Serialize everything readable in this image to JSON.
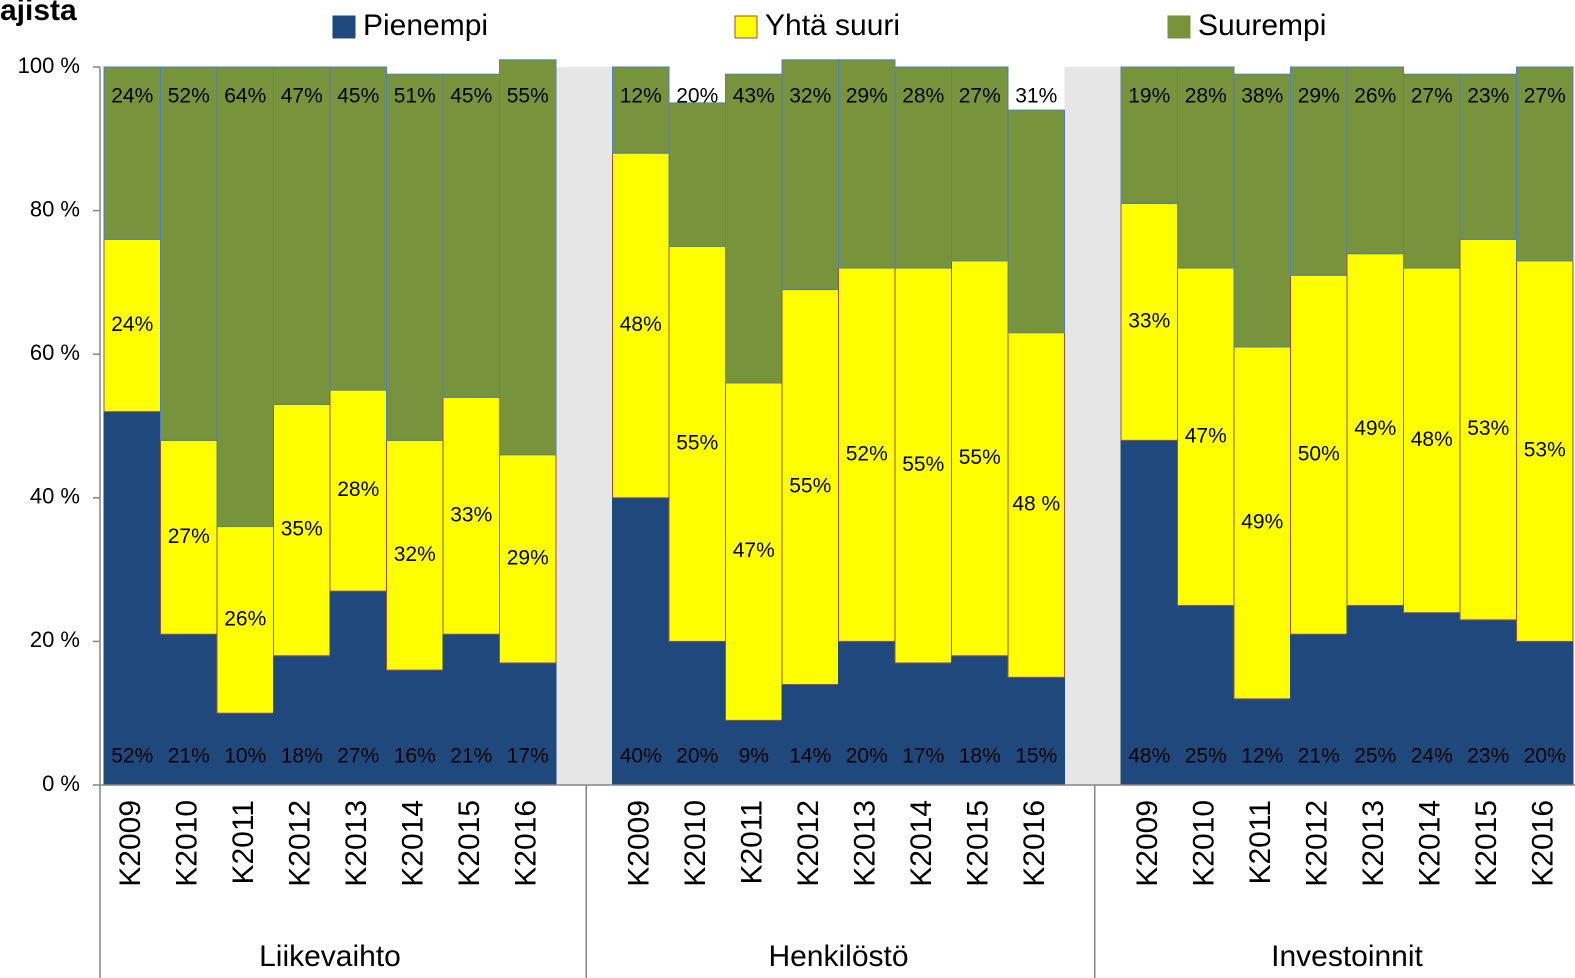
{
  "chart_data": {
    "type": "stacked_bar",
    "title": "ajista",
    "groups": [
      "Liikevaihto",
      "Henkilöstö",
      "Investoinnit"
    ],
    "categories": [
      "K2009",
      "K2010",
      "K2011",
      "K2012",
      "K2013",
      "K2014",
      "K2015",
      "K2016",
      "K2009",
      "K2010",
      "K2011",
      "K2012",
      "K2013",
      "K2014",
      "K2015",
      "K2016",
      "K2009",
      "K2010",
      "K2011",
      "K2012",
      "K2013",
      "K2014",
      "K2015",
      "K2016"
    ],
    "series": [
      {
        "name": "Pienempi",
        "color": "#1f497d",
        "values": [
          52,
          21,
          10,
          18,
          27,
          16,
          21,
          17,
          40,
          20,
          9,
          14,
          20,
          17,
          18,
          15,
          48,
          25,
          12,
          21,
          25,
          24,
          23,
          20
        ],
        "value_labels": [
          "52%",
          "21%",
          "10%",
          "18%",
          "27%",
          "16%",
          "21%",
          "17%",
          "40%",
          "20%",
          "9%",
          "14%",
          "20%",
          "17%",
          "18%",
          "15%",
          "48%",
          "25%",
          "12%",
          "21%",
          "25%",
          "24%",
          "23%",
          "20%"
        ]
      },
      {
        "name": "Yhtä suuri",
        "color": "#ffff00",
        "values": [
          24,
          27,
          26,
          35,
          28,
          32,
          33,
          29,
          48,
          55,
          47,
          55,
          52,
          55,
          55,
          48,
          33,
          47,
          49,
          50,
          49,
          48,
          53,
          53
        ],
        "value_labels": [
          "24%",
          "27%",
          "26%",
          "35%",
          "28%",
          "32%",
          "33%",
          "29%",
          "48%",
          "55%",
          "47%",
          "55%",
          "52%",
          "55%",
          "55%",
          "48 %",
          "33%",
          "47%",
          "49%",
          "50%",
          "49%",
          "48%",
          "53%",
          "53%"
        ]
      },
      {
        "name": "Suurempi",
        "color": "#77933c",
        "values": [
          24,
          52,
          64,
          47,
          45,
          51,
          45,
          55,
          12,
          20,
          43,
          32,
          29,
          28,
          27,
          31,
          19,
          28,
          38,
          29,
          26,
          27,
          23,
          27
        ],
        "value_labels": [
          "24%",
          "52%",
          "64%",
          "47%",
          "45%",
          "51%",
          "45%",
          "55%",
          "12%",
          "20%",
          "43%",
          "32%",
          "29%",
          "28%",
          "27%",
          "31%",
          "19%",
          "28%",
          "38%",
          "29%",
          "26%",
          "27%",
          "23%",
          "27%"
        ]
      }
    ],
    "ylim": [
      0,
      100
    ],
    "yticks": [
      {
        "value": 0,
        "label": "0 %"
      },
      {
        "value": 20,
        "label": "20 %"
      },
      {
        "value": 40,
        "label": "40 %"
      },
      {
        "value": 60,
        "label": "60 %"
      },
      {
        "value": 80,
        "label": "80 %"
      },
      {
        "value": 100,
        "label": "100 %"
      }
    ],
    "legend": "top"
  }
}
